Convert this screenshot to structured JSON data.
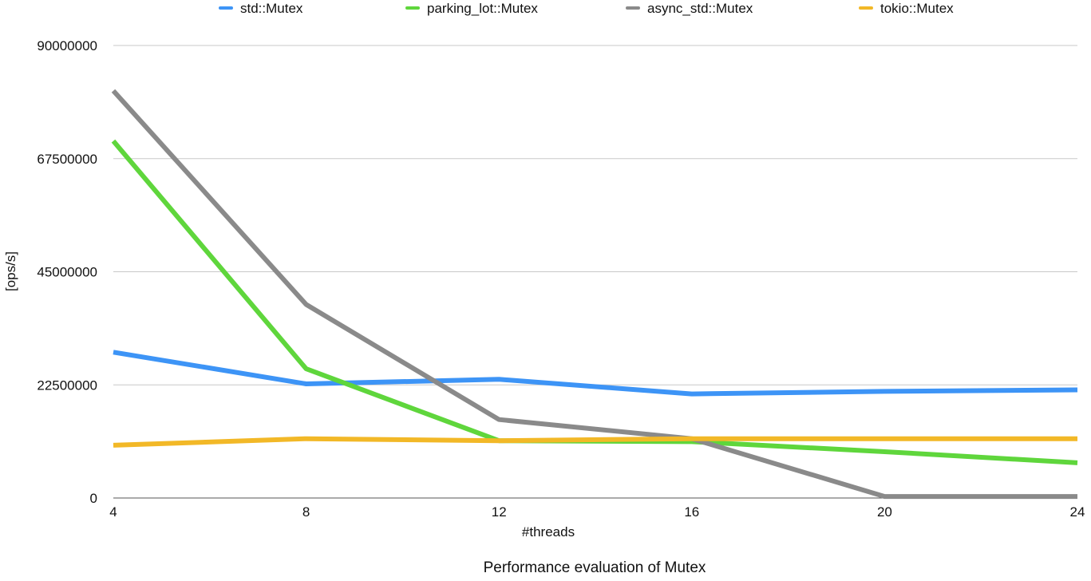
{
  "chart_data": {
    "type": "line",
    "title": "Performance evaluation of Mutex",
    "xlabel": "#threads",
    "ylabel": "[ops/s]",
    "x": [
      4,
      8,
      12,
      16,
      20,
      24
    ],
    "x_tick_labels": [
      "4",
      "8",
      "12",
      "16",
      "20",
      "24"
    ],
    "ylim": [
      0,
      90000000
    ],
    "y_ticks": [
      0,
      22500000,
      45000000,
      67500000,
      90000000
    ],
    "y_tick_labels": [
      "0",
      "22500000",
      "45000000",
      "67500000",
      "90000000"
    ],
    "grid": true,
    "legend_position": "top",
    "series": [
      {
        "name": "std::Mutex",
        "color": "#3d94f6",
        "values": [
          29000000,
          22700000,
          23600000,
          20700000,
          21200000,
          21500000
        ]
      },
      {
        "name": "parking_lot::Mutex",
        "color": "#5fd63c",
        "values": [
          71000000,
          25700000,
          11400000,
          11200000,
          9200000,
          7000000
        ]
      },
      {
        "name": "async_std::Mutex",
        "color": "#8a8a8a",
        "values": [
          81000000,
          38500000,
          15600000,
          11800000,
          300000,
          300000
        ]
      },
      {
        "name": "tokio::Mutex",
        "color": "#f2b827",
        "values": [
          10500000,
          11800000,
          11400000,
          11800000,
          11800000,
          11800000
        ]
      }
    ]
  }
}
